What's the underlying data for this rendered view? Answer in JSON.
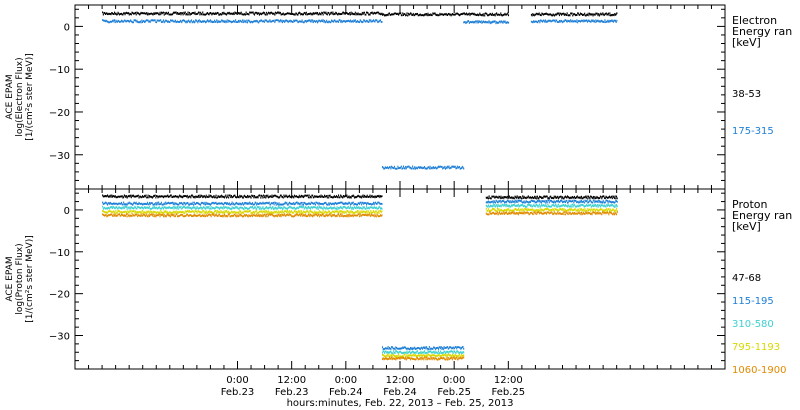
{
  "chart_data": [
    {
      "type": "scatter",
      "panel": "electron",
      "ylabel": [
        "ACE EPAM",
        "log(Electron Flux)",
        "[1/(cm²s ster MeV)]"
      ],
      "ylim": [
        -38,
        5
      ],
      "yticks": [
        0,
        -10,
        -20,
        -30
      ],
      "legend_title": [
        "Electron",
        "Energy ran",
        "[keV]"
      ],
      "legend_placement": "right",
      "grid": false,
      "series": [
        {
          "name": "38-53",
          "color": "#000000",
          "segments": [
            {
              "x": [
                -30,
                32
              ],
              "y": [
                3.0,
                3.0
              ]
            },
            {
              "x": [
                32,
                60
              ],
              "y": [
                2.8,
                2.8
              ]
            },
            {
              "x": [
                65,
                84
              ],
              "y": [
                2.8,
                2.8
              ]
            }
          ]
        },
        {
          "name": "175-315",
          "color": "#1e7fd6",
          "segments": [
            {
              "x": [
                -30,
                32
              ],
              "y": [
                1.2,
                1.2
              ]
            },
            {
              "x": [
                32,
                50
              ],
              "y": [
                -33.0,
                -33.0
              ]
            },
            {
              "x": [
                50,
                60
              ],
              "y": [
                1.0,
                1.0
              ]
            },
            {
              "x": [
                65,
                84
              ],
              "y": [
                1.2,
                1.2
              ]
            }
          ]
        }
      ]
    },
    {
      "type": "scatter",
      "panel": "proton",
      "ylabel": [
        "ACE EPAM",
        "log(Proton Flux)",
        "[1/(cm²s ster MeV)]"
      ],
      "ylim": [
        -38,
        5
      ],
      "yticks": [
        0,
        -10,
        -20,
        -30
      ],
      "legend_title": [
        "Proton",
        "Energy ran",
        "[keV]"
      ],
      "legend_placement": "right",
      "grid": false,
      "series": [
        {
          "name": "47-68",
          "color": "#000000",
          "segments": [
            {
              "x": [
                -30,
                32
              ],
              "y": [
                3.2,
                3.2
              ]
            },
            {
              "x": [
                55,
                84
              ],
              "y": [
                3.0,
                3.0
              ]
            }
          ]
        },
        {
          "name": "115-195",
          "color": "#1e7fd6",
          "segments": [
            {
              "x": [
                -30,
                32
              ],
              "y": [
                1.5,
                1.5
              ]
            },
            {
              "x": [
                32,
                50
              ],
              "y": [
                -33.0,
                -33.0
              ]
            },
            {
              "x": [
                55,
                84
              ],
              "y": [
                2.0,
                2.0
              ]
            }
          ]
        },
        {
          "name": "310-580",
          "color": "#3fd0d0",
          "segments": [
            {
              "x": [
                -30,
                32
              ],
              "y": [
                0.5,
                0.5
              ]
            },
            {
              "x": [
                32,
                50
              ],
              "y": [
                -34.0,
                -34.0
              ]
            },
            {
              "x": [
                55,
                84
              ],
              "y": [
                1.0,
                1.0
              ]
            }
          ]
        },
        {
          "name": "795-1193",
          "color": "#d8d800",
          "segments": [
            {
              "x": [
                -30,
                32
              ],
              "y": [
                -0.5,
                -0.5
              ]
            },
            {
              "x": [
                32,
                50
              ],
              "y": [
                -34.8,
                -34.8
              ]
            },
            {
              "x": [
                55,
                84
              ],
              "y": [
                0.0,
                0.0
              ]
            }
          ]
        },
        {
          "name": "1060-1900",
          "color": "#e08a00",
          "segments": [
            {
              "x": [
                -30,
                32
              ],
              "y": [
                -1.3,
                -1.3
              ]
            },
            {
              "x": [
                32,
                50
              ],
              "y": [
                -35.5,
                -35.5
              ]
            },
            {
              "x": [
                55,
                84
              ],
              "y": [
                -0.8,
                -0.8
              ]
            }
          ]
        }
      ]
    }
  ],
  "x_axis": {
    "unit": "hours since 2013-02-23 00:00",
    "xlim": [
      -36,
      108
    ],
    "ticks": [
      {
        "x": 0,
        "time": "0:00",
        "date": "Feb.23"
      },
      {
        "x": 12,
        "time": "12:00",
        "date": "Feb.23"
      },
      {
        "x": 24,
        "time": "0:00",
        "date": "Feb.24"
      },
      {
        "x": 36,
        "time": "12:00",
        "date": "Feb.24"
      },
      {
        "x": 48,
        "time": "0:00",
        "date": "Feb.25"
      },
      {
        "x": 60,
        "time": "12:00",
        "date": "Feb.25"
      }
    ],
    "label": "hours:minutes, Feb. 22, 2013 – Feb. 25, 2013"
  }
}
